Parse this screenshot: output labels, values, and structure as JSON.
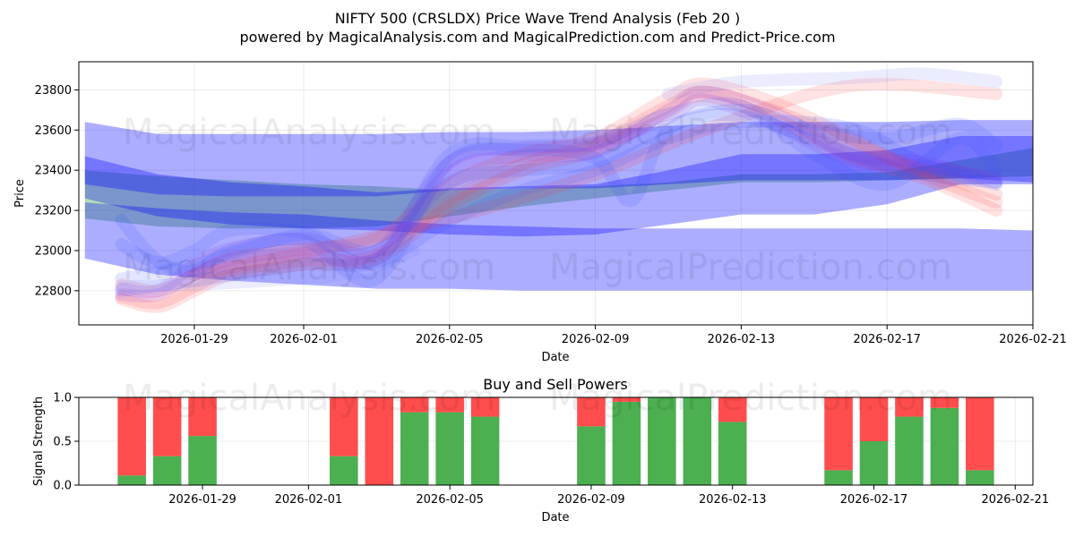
{
  "title_line1": "NIFTY 500 (CRSLDX) Price Wave Trend Analysis (Feb 20 )",
  "title_line2": "powered by MagicalAnalysis.com and MagicalPrediction.com and Predict-Price.com",
  "watermarks": [
    "MagicalAnalysis.com",
    "MagicalPrediction.com"
  ],
  "chart_data": [
    {
      "type": "area",
      "title": "NIFTY 500 (CRSLDX) Price Wave Trend Analysis (Feb 20 )",
      "xlabel": "Date",
      "ylabel": "Price",
      "xlim": [
        "2026-01-25T20:00",
        "2026-02-21T00:00"
      ],
      "ylim": [
        22630,
        23940
      ],
      "xticks": [
        "2026-01-29",
        "2026-02-01",
        "2026-02-05",
        "2026-02-09",
        "2026-02-13",
        "2026-02-17",
        "2026-02-21"
      ],
      "yticks": [
        22800,
        23000,
        23200,
        23400,
        23600,
        23800
      ],
      "bands": [
        {
          "name": "green trend band",
          "color": "#4caf50",
          "x": [
            "2026-01-26",
            "2026-01-28",
            "2026-01-30",
            "2026-02-01",
            "2026-02-03",
            "2026-02-05",
            "2026-02-07",
            "2026-02-09",
            "2026-02-11",
            "2026-02-13",
            "2026-02-15",
            "2026-02-17",
            "2026-02-19",
            "2026-02-21"
          ],
          "upper": [
            23400,
            23370,
            23350,
            23330,
            23320,
            23300,
            23310,
            23320,
            23340,
            23380,
            23380,
            23390,
            23450,
            23510
          ],
          "lower": [
            23160,
            23120,
            23110,
            23110,
            23120,
            23170,
            23220,
            23260,
            23300,
            23340,
            23340,
            23350,
            23360,
            23370
          ]
        },
        {
          "name": "blue upper band",
          "color": "#0000ff",
          "x": [
            "2026-01-26",
            "2026-01-28",
            "2026-01-30",
            "2026-02-01",
            "2026-02-03",
            "2026-02-05",
            "2026-02-07",
            "2026-02-09",
            "2026-02-11",
            "2026-02-13",
            "2026-02-15",
            "2026-02-17",
            "2026-02-19",
            "2026-02-21"
          ],
          "upper": [
            23640,
            23580,
            23580,
            23580,
            23580,
            23590,
            23590,
            23600,
            23620,
            23640,
            23640,
            23640,
            23650,
            23650
          ],
          "lower": [
            23330,
            23280,
            23270,
            23270,
            23270,
            23300,
            23310,
            23310,
            23330,
            23350,
            23350,
            23350,
            23360,
            23340
          ]
        },
        {
          "name": "blue middle band",
          "color": "#0000ff",
          "x": [
            "2026-01-26",
            "2026-01-28",
            "2026-01-30",
            "2026-02-01",
            "2026-02-03",
            "2026-02-05",
            "2026-02-07",
            "2026-02-09",
            "2026-02-11",
            "2026-02-13",
            "2026-02-15",
            "2026-02-17",
            "2026-02-19",
            "2026-02-21"
          ],
          "upper": [
            23470,
            23380,
            23340,
            23320,
            23290,
            23310,
            23320,
            23330,
            23400,
            23480,
            23480,
            23500,
            23570,
            23570
          ],
          "lower": [
            23260,
            23170,
            23130,
            23110,
            23100,
            23080,
            23070,
            23080,
            23130,
            23180,
            23180,
            23230,
            23330,
            23330
          ]
        },
        {
          "name": "blue lower band",
          "color": "#0000ff",
          "x": [
            "2026-01-26",
            "2026-01-28",
            "2026-01-30",
            "2026-02-01",
            "2026-02-03",
            "2026-02-05",
            "2026-02-07",
            "2026-02-09",
            "2026-02-11",
            "2026-02-13",
            "2026-02-15",
            "2026-02-17",
            "2026-02-19",
            "2026-02-21"
          ],
          "upper": [
            23240,
            23210,
            23190,
            23180,
            23150,
            23130,
            23120,
            23110,
            23110,
            23110,
            23110,
            23110,
            23110,
            23100
          ],
          "lower": [
            22960,
            22880,
            22850,
            22830,
            22810,
            22810,
            22800,
            22800,
            22800,
            22800,
            22800,
            22800,
            22800,
            22800
          ]
        }
      ],
      "wave_lines": [
        {
          "name": "red wave 1",
          "color": "#ff3030",
          "x": [
            "2026-01-27",
            "2026-01-28",
            "2026-01-29",
            "2026-01-30",
            "2026-02-01",
            "2026-02-03",
            "2026-02-05",
            "2026-02-07",
            "2026-02-09",
            "2026-02-11",
            "2026-02-12",
            "2026-02-14",
            "2026-02-16",
            "2026-02-18",
            "2026-02-20"
          ],
          "y": [
            22770,
            22740,
            22820,
            22900,
            22950,
            22980,
            23250,
            23430,
            23530,
            23720,
            23790,
            23690,
            23540,
            23400,
            23280
          ]
        },
        {
          "name": "red wave 2",
          "color": "#ff3030",
          "x": [
            "2026-01-27",
            "2026-01-28",
            "2026-01-29",
            "2026-01-30",
            "2026-02-01",
            "2026-02-03",
            "2026-02-05",
            "2026-02-07",
            "2026-02-09",
            "2026-02-11",
            "2026-02-12",
            "2026-02-14",
            "2026-02-16",
            "2026-02-18",
            "2026-02-20"
          ],
          "y": [
            22830,
            22800,
            22880,
            22960,
            23010,
            23060,
            23330,
            23480,
            23560,
            23760,
            23830,
            23730,
            23560,
            23380,
            23240
          ]
        },
        {
          "name": "red wave 3",
          "color": "#ff3030",
          "x": [
            "2026-01-27",
            "2026-01-28",
            "2026-01-29",
            "2026-01-30",
            "2026-02-01",
            "2026-02-03",
            "2026-02-05",
            "2026-02-07",
            "2026-02-09",
            "2026-02-11",
            "2026-02-12",
            "2026-02-14",
            "2026-02-16",
            "2026-02-18",
            "2026-02-20"
          ],
          "y": [
            22760,
            22720,
            22800,
            22880,
            22930,
            22960,
            23220,
            23400,
            23500,
            23690,
            23770,
            23650,
            23470,
            23360,
            23200
          ]
        },
        {
          "name": "red wave 4",
          "color": "#ff3030",
          "x": [
            "2026-01-29",
            "2026-02-01",
            "2026-02-05",
            "2026-02-09",
            "2026-02-12",
            "2026-02-16",
            "2026-02-20"
          ],
          "y": [
            22880,
            22990,
            23160,
            23380,
            23600,
            23820,
            23780
          ]
        },
        {
          "name": "purple wave 1",
          "color": "#8a2be2",
          "x": [
            "2026-01-27",
            "2026-01-28",
            "2026-01-29",
            "2026-01-30",
            "2026-02-01",
            "2026-02-03",
            "2026-02-05",
            "2026-02-07",
            "2026-02-09",
            "2026-02-11",
            "2026-02-12",
            "2026-02-14",
            "2026-02-16",
            "2026-02-18",
            "2026-02-20"
          ],
          "y": [
            22780,
            22780,
            22880,
            22950,
            22990,
            22960,
            23390,
            23470,
            23490,
            23700,
            23790,
            23680,
            23480,
            23440,
            23340
          ]
        },
        {
          "name": "purple wave 2",
          "color": "#8a2be2",
          "x": [
            "2026-01-27",
            "2026-01-28",
            "2026-01-29",
            "2026-01-30",
            "2026-02-01",
            "2026-02-03",
            "2026-02-05",
            "2026-02-07",
            "2026-02-09",
            "2026-02-11",
            "2026-02-12",
            "2026-02-14",
            "2026-02-16",
            "2026-02-18",
            "2026-02-20"
          ],
          "y": [
            22810,
            22800,
            22930,
            23010,
            23060,
            23000,
            23440,
            23510,
            23530,
            23660,
            23750,
            23620,
            23450,
            23420,
            23360
          ]
        },
        {
          "name": "blue wave 1",
          "color": "#3050ff",
          "x": [
            "2026-01-27",
            "2026-01-28",
            "2026-01-29",
            "2026-01-30",
            "2026-02-01",
            "2026-02-03",
            "2026-02-05",
            "2026-02-07",
            "2026-02-09",
            "2026-02-10",
            "2026-02-11",
            "2026-02-13",
            "2026-02-15",
            "2026-02-17",
            "2026-02-19",
            "2026-02-20"
          ],
          "y": [
            23150,
            22950,
            22900,
            23000,
            23050,
            22860,
            23440,
            23500,
            23460,
            23250,
            23600,
            23700,
            23600,
            23560,
            23630,
            23520
          ]
        },
        {
          "name": "blue wave 2",
          "color": "#3050ff",
          "x": [
            "2026-01-27",
            "2026-01-28",
            "2026-01-29",
            "2026-01-30",
            "2026-02-01",
            "2026-02-03",
            "2026-02-05",
            "2026-02-07",
            "2026-02-09",
            "2026-02-11",
            "2026-02-13",
            "2026-02-15",
            "2026-02-17",
            "2026-02-19",
            "2026-02-20"
          ],
          "y": [
            23030,
            22940,
            23000,
            23100,
            23090,
            22950,
            23480,
            23520,
            23540,
            23680,
            23720,
            23480,
            23330,
            23560,
            23400
          ]
        },
        {
          "name": "blue wave 3",
          "color": "#3050ff",
          "x": [
            "2026-01-27",
            "2026-01-29",
            "2026-02-01",
            "2026-02-03",
            "2026-02-05",
            "2026-02-07",
            "2026-02-09",
            "2026-02-11",
            "2026-02-13",
            "2026-02-16",
            "2026-02-18",
            "2026-02-20"
          ],
          "y": [
            22860,
            22930,
            23080,
            23000,
            23340,
            23400,
            23440,
            23620,
            23670,
            23480,
            23380,
            23340
          ]
        },
        {
          "name": "blue wave 4",
          "color": "#3050ff",
          "x": [
            "2026-01-27",
            "2026-01-29",
            "2026-02-01",
            "2026-02-03",
            "2026-02-05",
            "2026-02-07",
            "2026-02-09",
            "2026-02-11",
            "2026-02-13",
            "2026-02-16",
            "2026-02-18",
            "2026-02-20"
          ],
          "y": [
            22800,
            22850,
            22930,
            22940,
            23150,
            23300,
            23400,
            23560,
            23640,
            23610,
            23430,
            23330
          ]
        },
        {
          "name": "light blue wave top",
          "color": "#7080ff",
          "x": [
            "2026-02-11",
            "2026-02-13",
            "2026-02-16",
            "2026-02-18",
            "2026-02-20"
          ],
          "y": [
            23780,
            23840,
            23860,
            23880,
            23840
          ]
        },
        {
          "name": "light blue wave low",
          "color": "#7080ff",
          "x": [
            "2026-01-27",
            "2026-01-30",
            "2026-02-02",
            "2026-02-03",
            "2026-02-04"
          ],
          "y": [
            22820,
            22840,
            22880,
            22920,
            23000
          ]
        }
      ]
    },
    {
      "type": "bar",
      "title": "Buy and Sell Powers",
      "xlabel": "Date",
      "ylabel": "Signal Strength",
      "ylim": [
        0.0,
        1.0
      ],
      "yticks": [
        "0.0",
        "0.5",
        "1.0"
      ],
      "xticks": [
        "2026-01-29",
        "2026-02-01",
        "2026-02-05",
        "2026-02-09",
        "2026-02-13",
        "2026-02-17",
        "2026-02-21"
      ],
      "series": [
        {
          "name": "Buy",
          "color": "#4caf50"
        },
        {
          "name": "Sell",
          "color": "#ff4d4d"
        }
      ],
      "categories": [
        "2026-01-27",
        "2026-01-28",
        "2026-01-29",
        "2026-02-02",
        "2026-02-03",
        "2026-02-04",
        "2026-02-05",
        "2026-02-06",
        "2026-02-09",
        "2026-02-10",
        "2026-02-11",
        "2026-02-12",
        "2026-02-13",
        "2026-02-16",
        "2026-02-17",
        "2026-02-18",
        "2026-02-19",
        "2026-02-20"
      ],
      "buy": [
        0.11,
        0.33,
        0.56,
        0.33,
        0.0,
        0.83,
        0.83,
        0.78,
        0.67,
        0.95,
        1.0,
        1.0,
        0.72,
        0.17,
        0.5,
        0.78,
        0.88,
        0.17
      ],
      "sell": [
        0.89,
        0.67,
        0.44,
        0.67,
        1.0,
        0.17,
        0.17,
        0.22,
        0.33,
        0.05,
        0.0,
        0.0,
        0.28,
        0.83,
        0.5,
        0.22,
        0.12,
        0.83
      ]
    }
  ]
}
